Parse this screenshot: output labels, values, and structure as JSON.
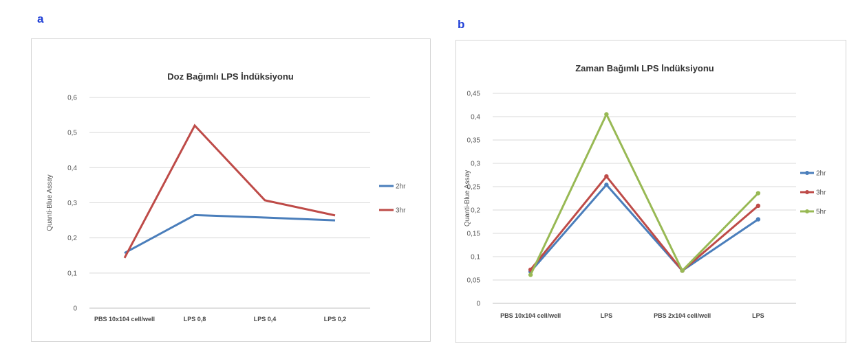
{
  "panels": {
    "a": {
      "letter": "a"
    },
    "b": {
      "letter": "b"
    }
  },
  "chart_data": [
    {
      "type": "line",
      "title": "Doz Bağımlı LPS İndüksiyonu",
      "xlabel": "",
      "ylabel": "Quanti-Blue Assay",
      "categories": [
        "PBS 10x104 cell/well",
        "LPS 0,8",
        "LPS 0,4",
        "LPS 0,2"
      ],
      "ylim": [
        0,
        0.6
      ],
      "yticks": [
        0,
        0.1,
        0.2,
        0.3,
        0.4,
        0.5,
        0.6
      ],
      "ytick_labels": [
        "0",
        "0,1",
        "0,2",
        "0,3",
        "0,4",
        "0,5",
        "0,6"
      ],
      "grid": true,
      "markers": false,
      "legend": "right",
      "series": [
        {
          "name": "2hr",
          "color": "#4a7ebb",
          "values": [
            0.157,
            0.265,
            0.258,
            0.25
          ]
        },
        {
          "name": "3hr",
          "color": "#be4b48",
          "values": [
            0.143,
            0.52,
            0.307,
            0.264
          ]
        }
      ]
    },
    {
      "type": "line",
      "title": "Zaman Bağımlı LPS İndüksiyonu",
      "xlabel": "",
      "ylabel": "Quanti-Blue Assay",
      "categories": [
        "PBS 10x104 cell/well",
        "LPS",
        "PBS  2x104 cell/well",
        "LPS"
      ],
      "ylim": [
        0,
        0.45
      ],
      "yticks": [
        0,
        0.05,
        0.1,
        0.15,
        0.2,
        0.25,
        0.3,
        0.35,
        0.4,
        0.45
      ],
      "ytick_labels": [
        "0",
        "0,05",
        "0,1",
        "0,15",
        "0,2",
        "0,25",
        "0,3",
        "0,35",
        "0,4",
        "0,45"
      ],
      "grid": true,
      "markers": true,
      "legend": "right",
      "series": [
        {
          "name": "2hr",
          "color": "#4a7ebb",
          "values": [
            0.068,
            0.254,
            0.07,
            0.18
          ]
        },
        {
          "name": "3hr",
          "color": "#be4b48",
          "values": [
            0.072,
            0.272,
            0.07,
            0.209
          ]
        },
        {
          "name": "5hr",
          "color": "#98b954",
          "values": [
            0.061,
            0.405,
            0.07,
            0.236
          ]
        }
      ]
    }
  ]
}
